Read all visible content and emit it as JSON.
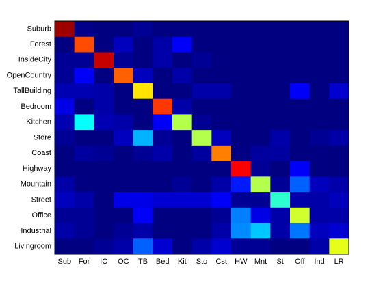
{
  "chart_data": {
    "type": "heatmap",
    "colormap": "jet",
    "clim": [
      0,
      1
    ],
    "x_labels": [
      "Sub",
      "For",
      "IC",
      "OC",
      "TB",
      "Bed",
      "Kit",
      "Sto",
      "Cst",
      "HW",
      "Mnt",
      "St",
      "Off",
      "Ind",
      "LR"
    ],
    "y_labels": [
      "Suburb",
      "Forest",
      "InsideCity",
      "OpenCountry",
      "TallBuilding",
      "Bedroom",
      "Kitchen",
      "Store",
      "Coast",
      "Highway",
      "Mountain",
      "Street",
      "Office",
      "Industrial",
      "Livingroom"
    ],
    "values": [
      [
        0.97,
        0.01,
        0,
        0,
        0.02,
        0,
        0,
        0,
        0,
        0,
        0,
        0,
        0,
        0,
        0
      ],
      [
        0,
        0.8,
        0,
        0.06,
        0,
        0.04,
        0.12,
        0,
        0,
        0,
        0,
        0,
        0,
        0,
        0
      ],
      [
        0.02,
        0.02,
        0.93,
        0.02,
        0,
        0.04,
        0,
        0.02,
        0,
        0,
        0,
        0,
        0,
        0,
        0
      ],
      [
        0.02,
        0.12,
        0,
        0.78,
        0.06,
        0,
        0.04,
        0,
        0,
        0,
        0,
        0,
        0,
        0,
        0
      ],
      [
        0.05,
        0.05,
        0.04,
        0,
        0.65,
        0,
        0,
        0.04,
        0.04,
        0,
        0,
        0,
        0.12,
        0,
        0.08
      ],
      [
        0.1,
        0,
        0.04,
        0,
        0,
        0.82,
        0.04,
        0,
        0,
        0,
        0,
        0,
        0,
        0,
        0
      ],
      [
        0.05,
        0.38,
        0.05,
        0.04,
        0,
        0.12,
        0.55,
        0.02,
        0,
        0,
        0,
        0,
        0,
        0,
        0
      ],
      [
        0.02,
        0,
        0,
        0.06,
        0.3,
        0.02,
        0,
        0.55,
        0.06,
        0,
        0,
        0.04,
        0,
        0.02,
        0.04
      ],
      [
        0,
        0.03,
        0.02,
        0,
        0.02,
        0.04,
        0,
        0.03,
        0.75,
        0,
        0.03,
        0.03,
        0,
        0,
        0
      ],
      [
        0,
        0,
        0,
        0,
        0,
        0,
        0,
        0,
        0,
        0.88,
        0.02,
        0,
        0.12,
        0,
        0
      ],
      [
        0.04,
        0,
        0,
        0,
        0,
        0,
        0.02,
        0,
        0.04,
        0.15,
        0.55,
        0.02,
        0.22,
        0.06,
        0.04
      ],
      [
        0.06,
        0.04,
        0,
        0.1,
        0.1,
        0.08,
        0.08,
        0.08,
        0.12,
        0.02,
        0.02,
        0.42,
        0.04,
        0.04,
        0.06
      ],
      [
        0.02,
        0.02,
        0,
        0,
        0.12,
        0,
        0,
        0,
        0.02,
        0.25,
        0.1,
        0.04,
        0.58,
        0.04,
        0.04
      ],
      [
        0.04,
        0.02,
        0,
        0.02,
        0.04,
        0,
        0,
        0,
        0.04,
        0.26,
        0.32,
        0.04,
        0.24,
        0.06,
        0.08
      ],
      [
        0,
        0,
        0.02,
        0.04,
        0.22,
        0.08,
        0,
        0.04,
        0.08,
        0.02,
        0.02,
        0,
        0,
        0.04,
        0.6
      ]
    ]
  }
}
